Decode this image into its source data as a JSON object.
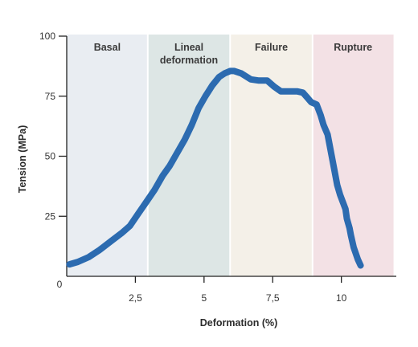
{
  "chart_data": {
    "type": "line",
    "xlabel": "Deformation (%)",
    "ylabel": "Tension (MPa)",
    "xlim": [
      0,
      12
    ],
    "ylim": [
      0,
      100
    ],
    "origin_label": "0",
    "x_ticks": [
      {
        "value": 2.5,
        "label": "2,5"
      },
      {
        "value": 5,
        "label": "5"
      },
      {
        "value": 7.5,
        "label": "7,5"
      },
      {
        "value": 10,
        "label": "10"
      }
    ],
    "y_ticks": [
      {
        "value": 25,
        "label": "25"
      },
      {
        "value": 50,
        "label": "50"
      },
      {
        "value": 75,
        "label": "75"
      },
      {
        "value": 100,
        "label": "100"
      }
    ],
    "regions": [
      {
        "id": "basal",
        "x_range": [
          0,
          2.95
        ],
        "lines": [
          "Basal"
        ],
        "color": "#e9edf2"
      },
      {
        "id": "lineal",
        "x_range": [
          2.95,
          5.95
        ],
        "lines": [
          "Lineal",
          "deformation"
        ],
        "color": "#dde6e5"
      },
      {
        "id": "failure",
        "x_range": [
          5.95,
          8.95
        ],
        "lines": [
          "Failure"
        ],
        "color": "#f4f0e8"
      },
      {
        "id": "rupture",
        "x_range": [
          8.95,
          11.9
        ],
        "lines": [
          "Rupture"
        ],
        "color": "#f3e1e5"
      }
    ],
    "series": [
      {
        "color": "#2c6bb0",
        "x": [
          0.1,
          0.4,
          0.8,
          1.2,
          1.6,
          2.0,
          2.3,
          2.6,
          2.9,
          3.2,
          3.5,
          3.75,
          4.05,
          4.3,
          4.55,
          4.8,
          5.05,
          5.3,
          5.55,
          5.75,
          5.95,
          6.1,
          6.35,
          6.7,
          7.0,
          7.3,
          7.55,
          7.8,
          8.1,
          8.4,
          8.6,
          8.75,
          8.9,
          9.1,
          9.25,
          9.35,
          9.5,
          9.65,
          9.75,
          9.85,
          9.95,
          10.05,
          10.15,
          10.2,
          10.3,
          10.35,
          10.45,
          10.6,
          10.7
        ],
        "y": [
          5,
          6,
          8,
          11,
          14.5,
          18,
          21,
          26,
          31,
          36,
          42,
          46,
          52,
          57,
          63,
          70,
          75,
          79.5,
          83,
          84.5,
          85.5,
          85.5,
          84.5,
          82,
          81.5,
          81.5,
          79,
          77,
          77,
          77,
          76.5,
          74.5,
          72.5,
          71.5,
          67,
          63,
          59,
          50,
          44,
          38,
          34,
          31,
          28,
          24,
          20,
          17,
          12,
          7,
          4.5
        ]
      }
    ]
  }
}
